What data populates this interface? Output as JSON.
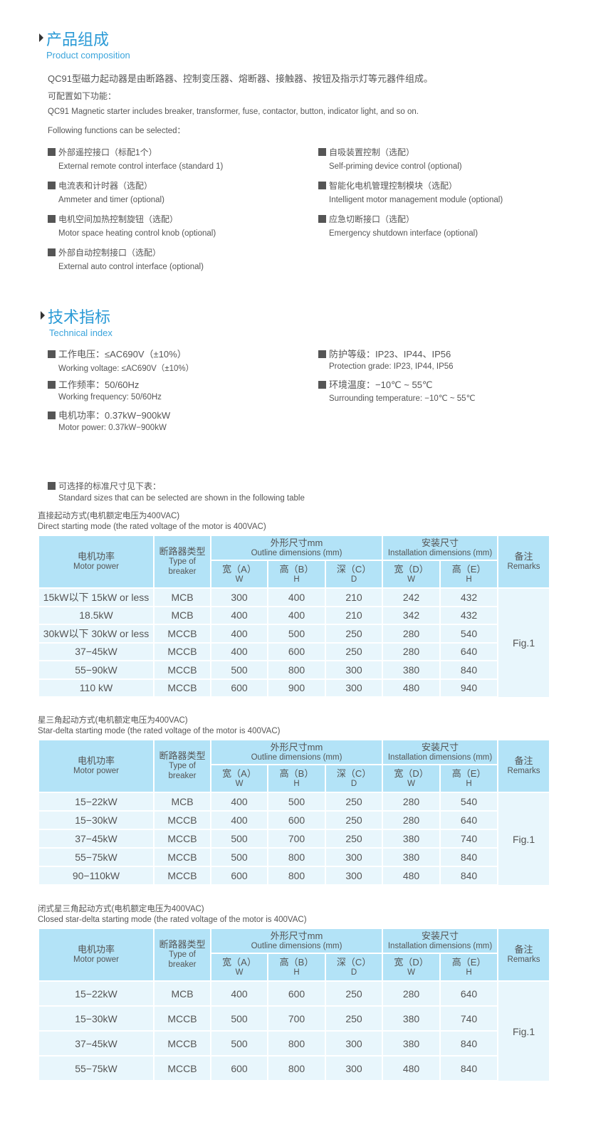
{
  "composition": {
    "title_cn": "产品组成",
    "title_en": "Product composition",
    "intro_cn": "QC91型磁力起动器是由断路器、控制变压器、熔断器、接触器、按钮及指示灯等元器件组成。",
    "configurable_cn": "可配置如下功能：",
    "intro_en": "QC91 Magnetic starter includes breaker, transformer, fuse, contactor, button, indicator light, and so on.",
    "following_en": "Following functions can be selected：",
    "features": [
      {
        "cn": "外部遥控接口（标配1个）",
        "en": "External remote control interface (standard 1)"
      },
      {
        "cn": "自吸装置控制（选配）",
        "en": "Self-priming device control (optional)"
      },
      {
        "cn": "电流表和计时器（选配）",
        "en": "Ammeter and timer (optional)"
      },
      {
        "cn": "智能化电机管理控制模块（选配）",
        "en": "Intelligent motor management module (optional)"
      },
      {
        "cn": "电机空间加热控制旋钮（选配）",
        "en": "Motor space heating control knob (optional)"
      },
      {
        "cn": "应急切断接口（选配）",
        "en": "Emergency shutdown interface (optional)"
      },
      {
        "cn": "外部自动控制接口（选配）",
        "en": "External auto control interface (optional)"
      }
    ]
  },
  "technical": {
    "title_cn": "技术指标",
    "title_en": "Technical index",
    "specs": [
      {
        "cn": "工作电压：≤AC690V（±10%）",
        "en": "Working voltage: ≤AC690V（±10%）"
      },
      {
        "cn": "防护等级：IP23、IP44、IP56",
        "en": "Protection grade: IP23, IP44, IP56"
      },
      {
        "cn": "工作频率：50/60Hz",
        "en": "Working frequency: 50/60Hz"
      },
      {
        "cn": "环境温度：−10℃ ~ 55℃",
        "en": "Surrounding temperature: −10℃ ~ 55℃"
      },
      {
        "cn": "电机功率：0.37kW−900kW",
        "en": "Motor power: 0.37kW−900kW"
      }
    ],
    "sizes_cn": "可选择的标准尺寸见下表：",
    "sizes_en": "Standard sizes that can be selected are shown in the following table"
  },
  "table_header": {
    "power_cn": "电机功率",
    "power_en": "Motor power",
    "breaker_cn": "断路器类型",
    "breaker_en": "Type of breaker",
    "outline_cn": "外形尺寸mm",
    "outline_en": "Outline dimensions (mm)",
    "install_cn": "安装尺寸",
    "install_en": "Installation dimensions (mm)",
    "remarks_cn": "备注",
    "remarks_en": "Remarks",
    "a_cn": "宽（A）",
    "a_en": "W",
    "b_cn": "高（B）",
    "b_en": "H",
    "c_cn": "深（C）",
    "c_en": "D",
    "d_cn": "宽（D）",
    "d_en": "W",
    "e_cn": "高（E）",
    "e_en": "H"
  },
  "tables": [
    {
      "caption_cn": "直接起动方式(电机额定电压为400VAC)",
      "caption_en": "Direct starting mode (the rated voltage of the motor is 400VAC)",
      "remark": "Fig.1",
      "rows": [
        [
          "15kW以下 15kW or less",
          "MCB",
          "300",
          "400",
          "210",
          "242",
          "432"
        ],
        [
          "18.5kW",
          "MCB",
          "400",
          "400",
          "210",
          "342",
          "432"
        ],
        [
          "30kW以下 30kW or less",
          "MCCB",
          "400",
          "500",
          "250",
          "280",
          "540"
        ],
        [
          "37−45kW",
          "MCCB",
          "400",
          "600",
          "250",
          "280",
          "640"
        ],
        [
          "55−90kW",
          "MCCB",
          "500",
          "800",
          "300",
          "380",
          "840"
        ],
        [
          "110 kW",
          "MCCB",
          "600",
          "900",
          "300",
          "480",
          "940"
        ]
      ]
    },
    {
      "caption_cn": "星三角起动方式(电机额定电压为400VAC)",
      "caption_en": "Star-delta starting mode (the rated voltage of the motor is 400VAC)",
      "remark": "Fig.1",
      "rows": [
        [
          "15−22kW",
          "MCB",
          "400",
          "500",
          "250",
          "280",
          "540"
        ],
        [
          "15−30kW",
          "MCCB",
          "400",
          "600",
          "250",
          "280",
          "640"
        ],
        [
          "37−45kW",
          "MCCB",
          "500",
          "700",
          "250",
          "380",
          "740"
        ],
        [
          "55−75kW",
          "MCCB",
          "500",
          "800",
          "300",
          "380",
          "840"
        ],
        [
          "90−110kW",
          "MCCB",
          "600",
          "800",
          "300",
          "480",
          "840"
        ]
      ]
    },
    {
      "caption_cn": "闭式星三角起动方式(电机额定电压为400VAC)",
      "caption_en": "Closed star-delta starting mode (the rated voltage of the motor is 400VAC)",
      "remark": "Fig.1",
      "rows": [
        [
          "15−22kW",
          "MCB",
          "400",
          "600",
          "250",
          "280",
          "640"
        ],
        [
          "15−30kW",
          "MCCB",
          "500",
          "700",
          "250",
          "380",
          "740"
        ],
        [
          "37−45kW",
          "MCCB",
          "500",
          "800",
          "300",
          "380",
          "840"
        ],
        [
          "55−75kW",
          "MCCB",
          "600",
          "800",
          "300",
          "480",
          "840"
        ]
      ]
    }
  ],
  "colors": {
    "title": "#2a9ad6",
    "header_bg": "#b3e3f7",
    "body_bg": "#e8f6fc"
  }
}
